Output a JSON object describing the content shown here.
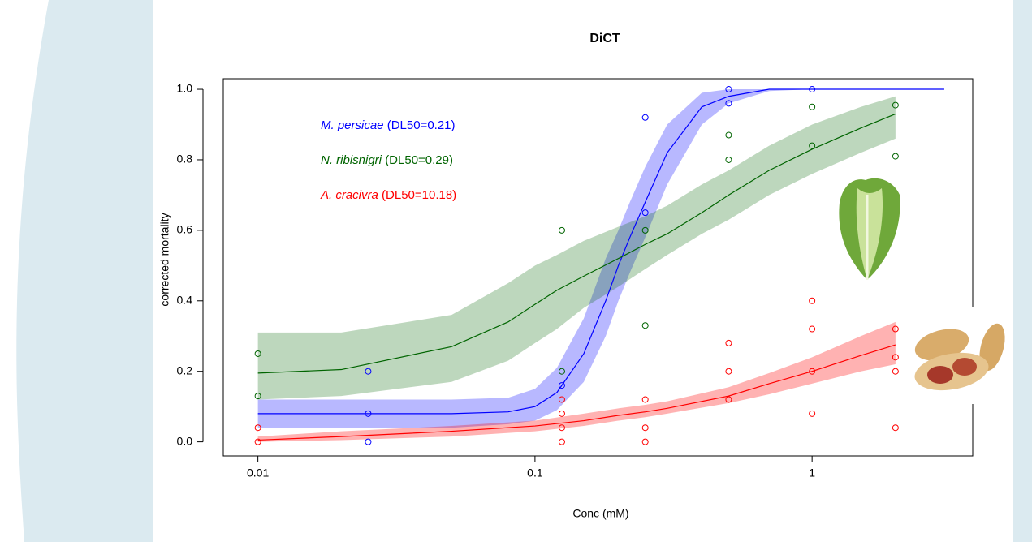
{
  "chart_data": {
    "type": "scatter",
    "title": "DiCT",
    "x_label": "Conc (mM)",
    "y_label": "corrected mortality",
    "xscale": "log",
    "xlim": [
      0.0075,
      3.8
    ],
    "ylim": [
      -0.04,
      1.03
    ],
    "xticks": [
      0.01,
      0.1,
      1
    ],
    "yticks": [
      {
        "value": 0,
        "label": "0.0"
      },
      0.2,
      0.4,
      0.6,
      0.8,
      {
        "value": 1,
        "label": "1.0"
      }
    ],
    "grid": false,
    "series": [
      {
        "name": "M. persicae",
        "annotation": "(DL50=0.21)",
        "color": "#0000ff",
        "band_color": "rgba(0,0,255,0.28)",
        "points": {
          "x": [
            0.025,
            0.025,
            0.025,
            0.125,
            0.25,
            0.25,
            0.5,
            0.5,
            1
          ],
          "y": [
            0.2,
            0.08,
            0,
            0.16,
            0.92,
            0.65,
            1,
            0.96,
            1
          ]
        },
        "fit": {
          "x": [
            0.01,
            0.05,
            0.08,
            0.1,
            0.12,
            0.15,
            0.18,
            0.2,
            0.22,
            0.25,
            0.3,
            0.4,
            0.5,
            0.7,
            1,
            3
          ],
          "y": [
            0.08,
            0.08,
            0.085,
            0.1,
            0.14,
            0.25,
            0.4,
            0.5,
            0.58,
            0.68,
            0.82,
            0.95,
            0.98,
            1,
            1,
            1
          ],
          "lower": [
            0.04,
            0.04,
            0.05,
            0.06,
            0.09,
            0.17,
            0.3,
            0.4,
            0.48,
            0.58,
            0.73,
            0.9,
            0.96,
            0.995,
            1,
            1
          ],
          "upper": [
            0.12,
            0.12,
            0.125,
            0.15,
            0.21,
            0.35,
            0.52,
            0.6,
            0.68,
            0.78,
            0.9,
            0.99,
            1,
            1,
            1,
            1
          ]
        }
      },
      {
        "name": "N. ribisnigri",
        "annotation": "(DL50=0.29)",
        "color": "#006400",
        "band_color": "rgba(0,100,0,0.26)",
        "points": {
          "x": [
            0.01,
            0.01,
            0.125,
            0.125,
            0.25,
            0.25,
            0.5,
            0.5,
            1,
            1,
            2,
            2
          ],
          "y": [
            0.25,
            0.13,
            0.6,
            0.2,
            0.6,
            0.33,
            0.87,
            0.8,
            0.95,
            0.84,
            0.955,
            0.81
          ]
        },
        "fit": {
          "x": [
            0.01,
            0.02,
            0.05,
            0.08,
            0.1,
            0.12,
            0.15,
            0.2,
            0.25,
            0.3,
            0.4,
            0.5,
            0.7,
            1,
            1.5,
            2
          ],
          "y": [
            0.195,
            0.205,
            0.27,
            0.34,
            0.39,
            0.43,
            0.47,
            0.52,
            0.56,
            0.59,
            0.65,
            0.7,
            0.77,
            0.83,
            0.89,
            0.93
          ],
          "lower": [
            0.12,
            0.13,
            0.17,
            0.23,
            0.28,
            0.32,
            0.38,
            0.44,
            0.49,
            0.53,
            0.59,
            0.63,
            0.7,
            0.76,
            0.82,
            0.86
          ],
          "upper": [
            0.31,
            0.31,
            0.36,
            0.45,
            0.5,
            0.53,
            0.57,
            0.61,
            0.64,
            0.67,
            0.73,
            0.77,
            0.84,
            0.9,
            0.95,
            0.98
          ]
        }
      },
      {
        "name": "A. cracivra",
        "annotation": "(DL50=10.18)",
        "color": "#ff0000",
        "band_color": "rgba(255,0,0,0.3)",
        "points": {
          "x": [
            0.01,
            0.01,
            0.125,
            0.125,
            0.125,
            0.125,
            0.25,
            0.25,
            0.25,
            0.5,
            0.5,
            0.5,
            1,
            1,
            1,
            1,
            2,
            2,
            2,
            2
          ],
          "y": [
            0.04,
            0,
            0.12,
            0.08,
            0.04,
            0,
            0.12,
            0.04,
            0,
            0.28,
            0.2,
            0.12,
            0.4,
            0.32,
            0.2,
            0.08,
            0.32,
            0.24,
            0.2,
            0.04
          ]
        },
        "fit": {
          "x": [
            0.01,
            0.02,
            0.05,
            0.1,
            0.15,
            0.2,
            0.25,
            0.3,
            0.5,
            0.7,
            1,
            1.5,
            2
          ],
          "y": [
            0.005,
            0.015,
            0.03,
            0.045,
            0.06,
            0.075,
            0.085,
            0.095,
            0.13,
            0.165,
            0.2,
            0.245,
            0.275
          ],
          "lower": [
            0,
            0.005,
            0.015,
            0.03,
            0.045,
            0.06,
            0.07,
            0.08,
            0.11,
            0.135,
            0.165,
            0.2,
            0.22
          ],
          "upper": [
            0.015,
            0.03,
            0.045,
            0.06,
            0.08,
            0.095,
            0.105,
            0.115,
            0.155,
            0.195,
            0.24,
            0.3,
            0.34
          ]
        }
      }
    ]
  }
}
